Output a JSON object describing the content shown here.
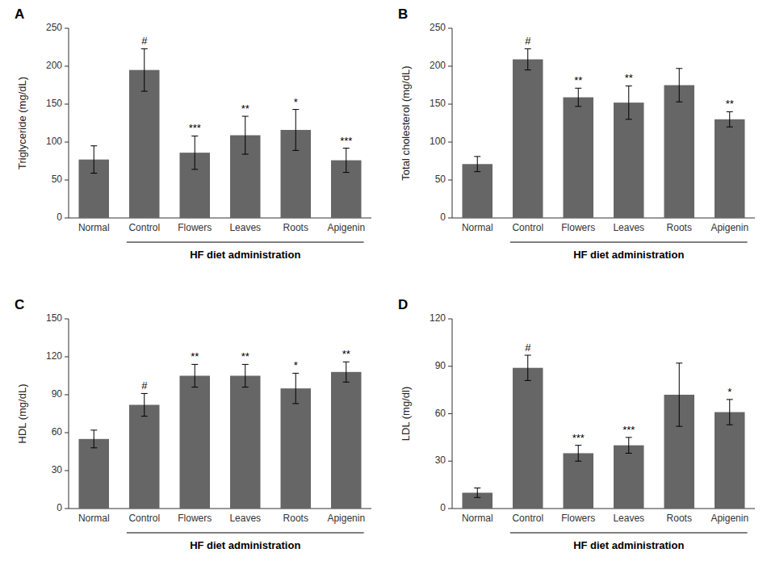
{
  "chart_data": [
    {
      "type": "bar",
      "title": "A",
      "ylabel": "Triglyceride (mg/dL)",
      "categories": [
        "Normal",
        "Control",
        "Flowers",
        "Leaves",
        "Roots",
        "Apigenin"
      ],
      "values": [
        77,
        195,
        86,
        109,
        116,
        76
      ],
      "errors": [
        18,
        28,
        22,
        25,
        27,
        16
      ],
      "color": "#666666",
      "ylim": [
        0,
        250
      ],
      "yticks": [
        0,
        50,
        100,
        150,
        200,
        250
      ],
      "grid": false,
      "annotations": [
        {
          "text": "HF diet administration",
          "x": [
            "Control",
            "Apigenin"
          ]
        },
        {
          "text": "#",
          "x": "Control"
        },
        {
          "text": "***",
          "x": "Flowers"
        },
        {
          "text": "**",
          "x": "Leaves"
        },
        {
          "text": "*",
          "x": "Roots"
        },
        {
          "text": "***",
          "x": "Apigenin"
        }
      ]
    },
    {
      "type": "bar",
      "title": "B",
      "ylabel": "Total cholesterol (mg/dL)",
      "categories": [
        "Normal",
        "Control",
        "Flowers",
        "Leaves",
        "Roots",
        "Apigenin"
      ],
      "values": [
        71,
        209,
        159,
        152,
        175,
        130
      ],
      "errors": [
        10,
        14,
        12,
        22,
        22,
        10
      ],
      "color": "#666666",
      "ylim": [
        0,
        250
      ],
      "yticks": [
        0,
        50,
        100,
        150,
        200,
        250
      ],
      "grid": false,
      "annotations": [
        {
          "text": "HF diet administration",
          "x": [
            "Control",
            "Apigenin"
          ]
        },
        {
          "text": "#",
          "x": "Control"
        },
        {
          "text": "**",
          "x": "Flowers"
        },
        {
          "text": "**",
          "x": "Leaves"
        },
        {
          "text": "**",
          "x": "Apigenin"
        }
      ]
    },
    {
      "type": "bar",
      "title": "C",
      "ylabel": "HDL (mg/dL)",
      "categories": [
        "Normal",
        "Control",
        "Flowers",
        "Leaves",
        "Roots",
        "Apigenin"
      ],
      "values": [
        55,
        82,
        105,
        105,
        95,
        108
      ],
      "errors": [
        7,
        9,
        9,
        9,
        12,
        8
      ],
      "color": "#666666",
      "ylim": [
        0,
        150
      ],
      "yticks": [
        0,
        30,
        60,
        90,
        120,
        150
      ],
      "grid": false,
      "annotations": [
        {
          "text": "HF diet administration",
          "x": [
            "Control",
            "Apigenin"
          ]
        },
        {
          "text": "#",
          "x": "Control"
        },
        {
          "text": "**",
          "x": "Flowers"
        },
        {
          "text": "**",
          "x": "Leaves"
        },
        {
          "text": "*",
          "x": "Roots"
        },
        {
          "text": "**",
          "x": "Apigenin"
        }
      ]
    },
    {
      "type": "bar",
      "title": "D",
      "ylabel": "LDL (mg/dl)",
      "categories": [
        "Normal",
        "Control",
        "Flowers",
        "Leaves",
        "Roots",
        "Apigenin"
      ],
      "values": [
        10,
        89,
        35,
        40,
        72,
        61
      ],
      "errors": [
        3,
        8,
        5,
        5,
        20,
        8
      ],
      "color": "#666666",
      "ylim": [
        0,
        120
      ],
      "yticks": [
        0,
        30,
        60,
        90,
        120
      ],
      "grid": false,
      "annotations": [
        {
          "text": "HF diet administration",
          "x": [
            "Control",
            "Apigenin"
          ]
        },
        {
          "text": "#",
          "x": "Control"
        },
        {
          "text": "***",
          "x": "Flowers"
        },
        {
          "text": "***",
          "x": "Leaves"
        },
        {
          "text": "*",
          "x": "Apigenin"
        }
      ]
    }
  ]
}
